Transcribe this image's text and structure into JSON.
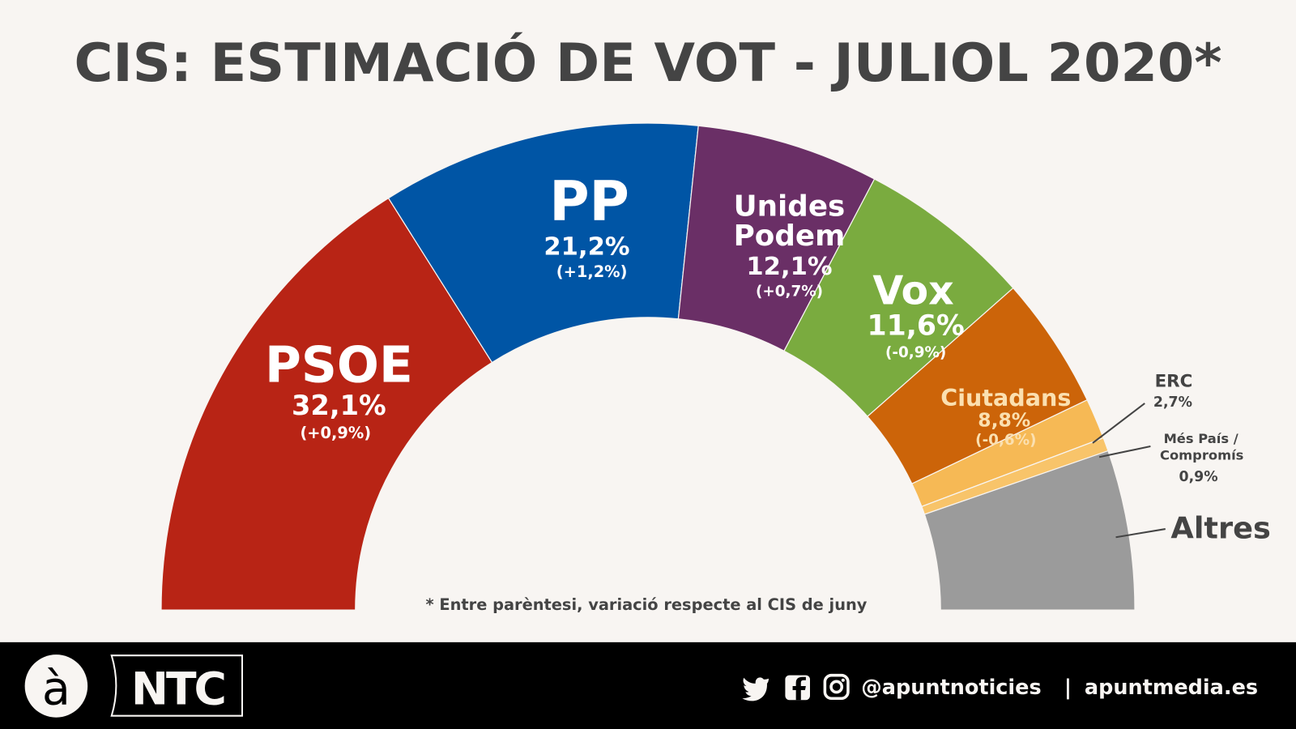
{
  "chart_data": {
    "type": "pie",
    "variant": "semicircle-donut",
    "title": "CIS: ESTIMACIÓ DE VOT - JULIOL 2020*",
    "footnote": "* Entre parèntesi, variació respecte al CIS de juny",
    "unit": "%",
    "slices": [
      {
        "name": "PSOE",
        "value": 32.1,
        "value_label": "32,1%",
        "change_label": "(+0,9%)",
        "color": "#b82415"
      },
      {
        "name": "PP",
        "value": 21.2,
        "value_label": "21,2%",
        "change_label": "(+1,2%)",
        "color": "#0055a5"
      },
      {
        "name": "Unides Podem",
        "name_lines": [
          "Unides",
          "Podem"
        ],
        "value": 12.1,
        "value_label": "12,1%",
        "change_label": "(+0,7%)",
        "color": "#6a2f66"
      },
      {
        "name": "Vox",
        "value": 11.6,
        "value_label": "11,6%",
        "change_label": "(-0,9%)",
        "color": "#7aab3f"
      },
      {
        "name": "Ciutadans",
        "value": 8.8,
        "value_label": "8,8%",
        "change_label": "(-0,6%)",
        "color": "#cc6409"
      },
      {
        "name": "ERC",
        "value": 2.7,
        "value_label": "2,7%",
        "color": "#f6b955"
      },
      {
        "name": "Més País / Compromís",
        "name_lines": [
          "Més País /",
          "Compromís"
        ],
        "value": 0.9,
        "value_label": "0,9%",
        "color": "#f8c46a"
      },
      {
        "name": "Altres",
        "value": 10.6,
        "color": "#9b9b9b"
      }
    ]
  },
  "footer": {
    "logo_letter": "à",
    "brand": "NTC",
    "social_handle": "@apuntnoticies",
    "separator": "|",
    "website": "apuntmedia.es",
    "icons": [
      "twitter-icon",
      "facebook-icon",
      "instagram-icon"
    ]
  }
}
